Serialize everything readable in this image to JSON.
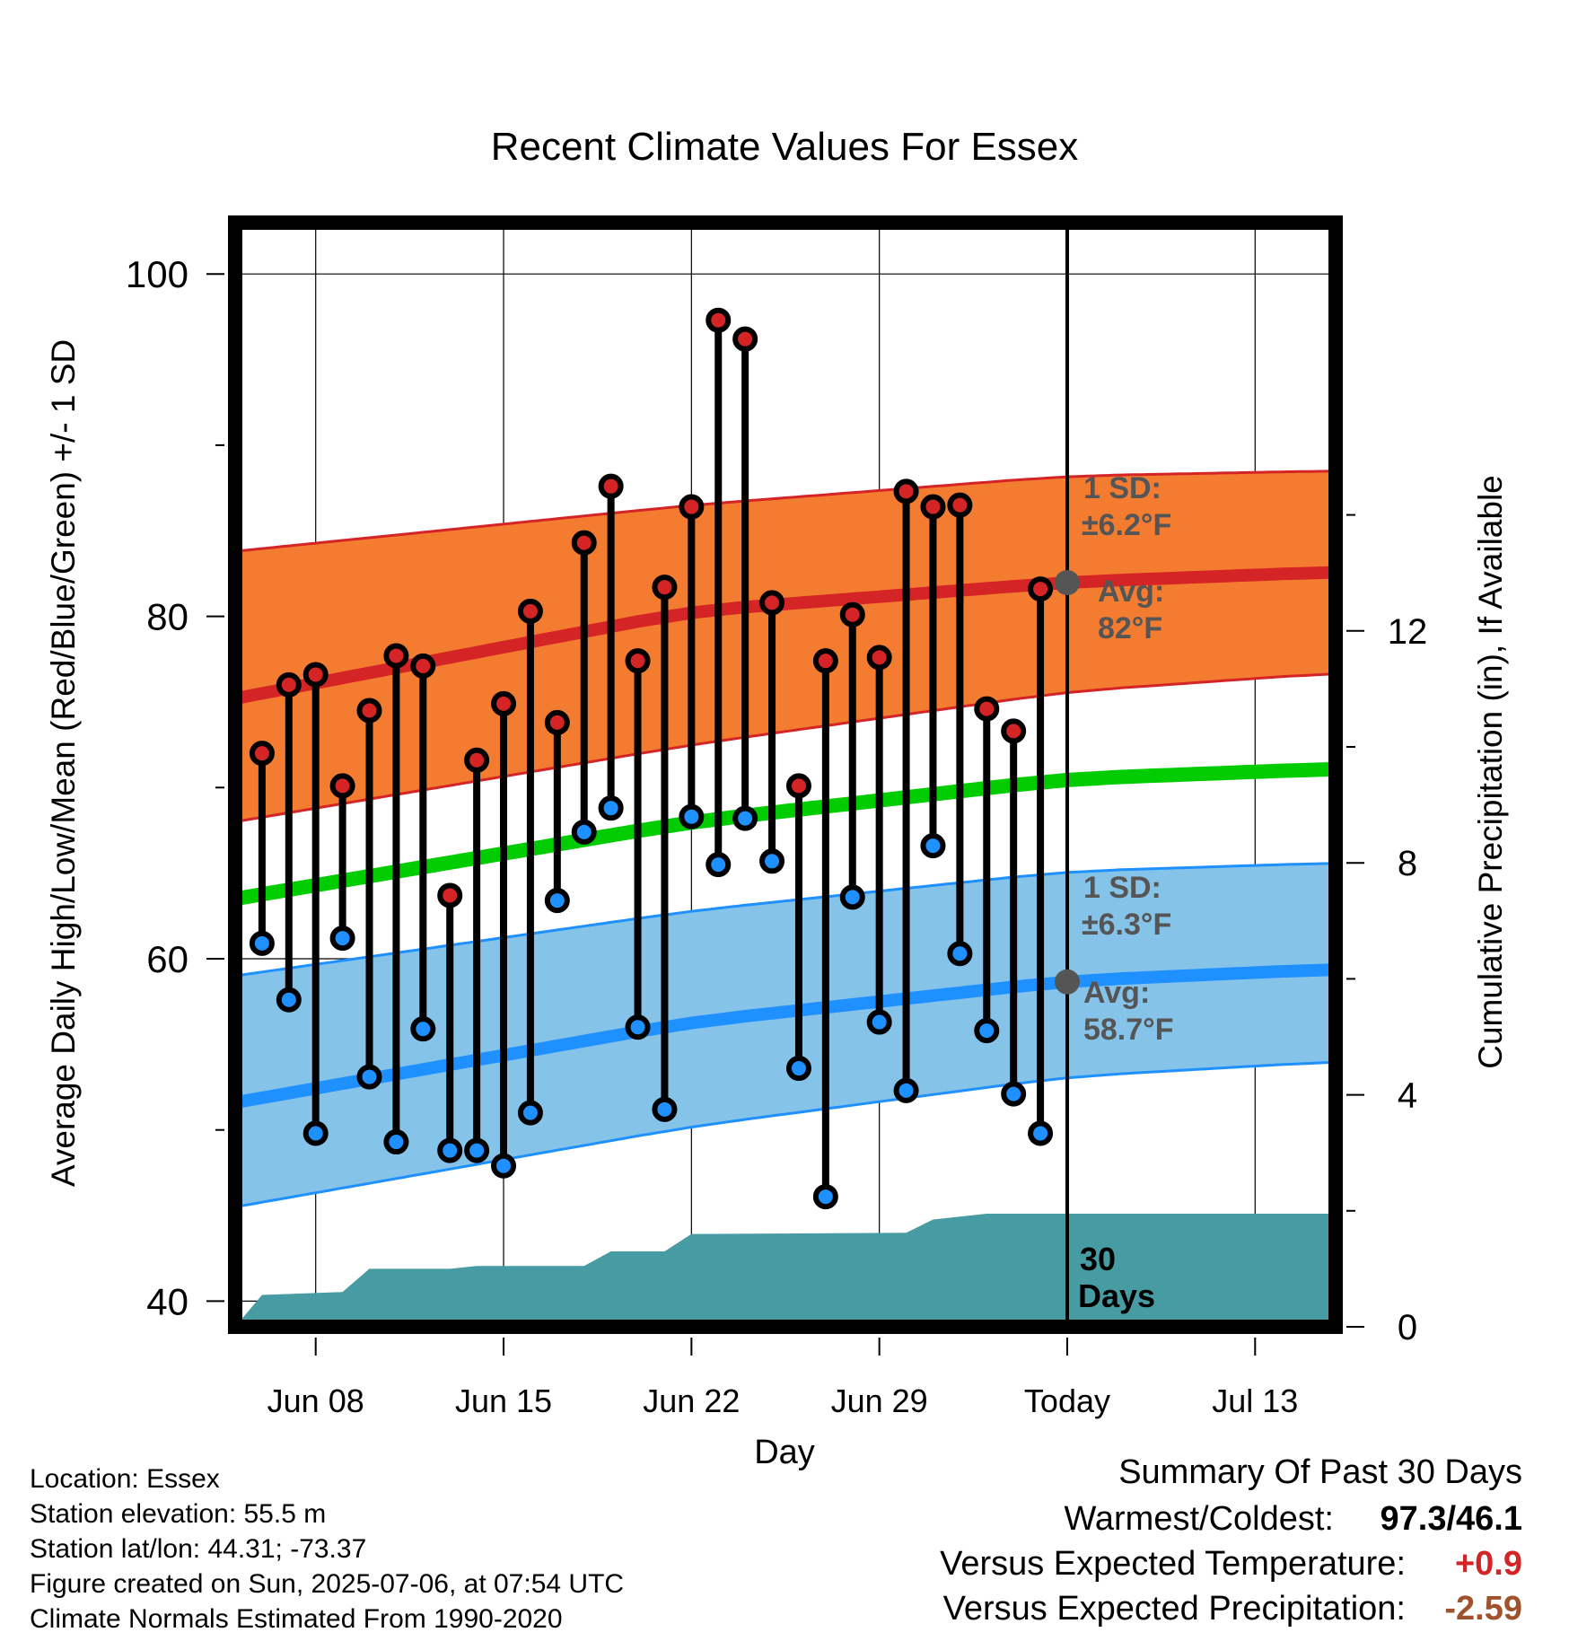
{
  "chart_data": {
    "type": "line",
    "title": "Recent Climate Values For Essex",
    "xlabel": "Day",
    "ylabel": "Average Daily High/Low/Mean (Red/Blue/Green) +/- 1 SD",
    "y2label": "Cumulative Precipitation (in), If Available",
    "ylim": [
      38.5,
      103
    ],
    "y2lim": [
      0,
      19.04
    ],
    "xlim": [
      "2025-06-05",
      "2025-07-16"
    ],
    "y_ticks": [
      "100",
      "80",
      "60",
      "40"
    ],
    "y2_ticks": [
      "12",
      "8",
      "4",
      "0"
    ],
    "x_ticks": [
      {
        "date": "2025-06-08",
        "label": "Jun 08"
      },
      {
        "date": "2025-06-15",
        "label": "Jun 15"
      },
      {
        "date": "2025-06-22",
        "label": "Jun 22"
      },
      {
        "date": "2025-06-29",
        "label": "Jun 29"
      },
      {
        "date": "2025-07-06",
        "label": "Today"
      },
      {
        "date": "2025-07-13",
        "label": "Jul 13"
      }
    ],
    "grid": true,
    "today": "2025-07-06",
    "daily": {
      "dates": [
        "2025-06-06",
        "2025-06-07",
        "2025-06-08",
        "2025-06-09",
        "2025-06-10",
        "2025-06-11",
        "2025-06-12",
        "2025-06-13",
        "2025-06-14",
        "2025-06-15",
        "2025-06-16",
        "2025-06-17",
        "2025-06-18",
        "2025-06-19",
        "2025-06-20",
        "2025-06-21",
        "2025-06-22",
        "2025-06-23",
        "2025-06-24",
        "2025-06-25",
        "2025-06-26",
        "2025-06-27",
        "2025-06-28",
        "2025-06-29",
        "2025-06-30",
        "2025-07-01",
        "2025-07-02",
        "2025-07-03",
        "2025-07-04",
        "2025-07-05"
      ],
      "high": [
        72.0,
        76.0,
        76.6,
        70.1,
        74.5,
        77.7,
        77.1,
        63.7,
        71.6,
        74.9,
        80.3,
        73.8,
        84.3,
        87.6,
        77.4,
        81.7,
        86.4,
        97.3,
        96.2,
        80.8,
        70.1,
        77.4,
        80.1,
        77.6,
        87.3,
        86.4,
        86.5,
        74.6,
        73.3,
        81.6
      ],
      "low": [
        60.9,
        57.6,
        49.8,
        61.2,
        53.1,
        49.3,
        55.9,
        48.8,
        48.8,
        47.9,
        51.0,
        63.4,
        67.4,
        68.8,
        56.0,
        51.2,
        68.3,
        65.5,
        68.2,
        65.7,
        53.6,
        46.1,
        63.6,
        56.3,
        52.3,
        66.6,
        60.3,
        55.8,
        52.1,
        49.8
      ]
    },
    "series": [
      {
        "name": "Avg High",
        "color": "#d42426",
        "values": [
          75.2,
          80.3,
          82.0,
          82.6
        ]
      },
      {
        "name": "Avg High +1 SD",
        "color": "#f47c30",
        "values": [
          83.8,
          86.5,
          88.2,
          88.5
        ]
      },
      {
        "name": "Avg High -1 SD",
        "color": "#f47c30",
        "values": [
          68.0,
          72.5,
          75.6,
          76.7
        ]
      },
      {
        "name": "Avg Mean",
        "color": "#00cc00",
        "values": [
          63.5,
          68.0,
          70.5,
          71.1
        ]
      },
      {
        "name": "Avg Low",
        "color": "#1e90ff",
        "values": [
          51.6,
          56.3,
          58.7,
          59.4
        ]
      },
      {
        "name": "Avg Low +1 SD",
        "color": "#85c3e8",
        "values": [
          59.0,
          62.8,
          65.1,
          65.6
        ]
      },
      {
        "name": "Avg Low -1 SD",
        "color": "#85c3e8",
        "values": [
          45.5,
          50.2,
          53.1,
          54.0
        ]
      }
    ],
    "normals_x": [
      "2025-06-05",
      "2025-06-22",
      "2025-07-06",
      "2025-07-16"
    ],
    "precip": {
      "color": "#479ba3",
      "points": [
        {
          "date": "2025-06-05",
          "value": 0.0
        },
        {
          "date": "2025-06-06",
          "value": 0.55
        },
        {
          "date": "2025-06-09",
          "value": 0.6
        },
        {
          "date": "2025-06-10",
          "value": 1.0
        },
        {
          "date": "2025-06-13",
          "value": 1.0
        },
        {
          "date": "2025-06-14",
          "value": 1.05
        },
        {
          "date": "2025-06-18",
          "value": 1.05
        },
        {
          "date": "2025-06-19",
          "value": 1.3
        },
        {
          "date": "2025-06-21",
          "value": 1.3
        },
        {
          "date": "2025-06-22",
          "value": 1.6
        },
        {
          "date": "2025-06-30",
          "value": 1.62
        },
        {
          "date": "2025-07-01",
          "value": 1.85
        },
        {
          "date": "2025-07-03",
          "value": 1.95
        },
        {
          "date": "2025-07-16",
          "value": 1.95
        }
      ]
    },
    "annotations": {
      "high_sd_1": "1 SD:",
      "high_sd_2": "±6.2°F",
      "high_avg_1": "Avg:",
      "high_avg_2": "82°F",
      "low_sd_1": "1 SD:",
      "low_sd_2": "±6.3°F",
      "low_avg_1": "Avg:",
      "low_avg_2": "58.7°F",
      "days_1": "30",
      "days_2": "Days"
    }
  },
  "footer": {
    "location": "Location: Essex",
    "elevation": "Station elevation: 55.5 m",
    "latlon": "Station lat/lon: 44.31; -73.37",
    "created": "Figure created on Sun, 2025-07-06, at 07:54 UTC",
    "normals": "Climate Normals Estimated From 1990-2020"
  },
  "summary": {
    "heading": "Summary Of Past 30 Days",
    "warm_cold_label": "Warmest/Coldest:",
    "warm_cold_value": "97.3/46.1",
    "temp_label": "Versus Expected Temperature:",
    "temp_value": "+0.9",
    "temp_color": "#d42426",
    "precip_label": "Versus Expected Precipitation:",
    "precip_value": "-2.59",
    "precip_color": "#a0522d"
  }
}
